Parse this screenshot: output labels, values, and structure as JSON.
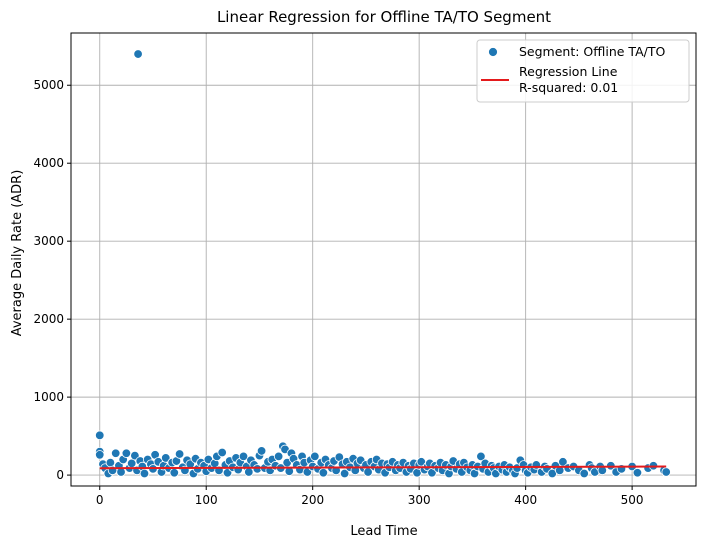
{
  "chart_data": {
    "type": "scatter",
    "title": "Linear Regression for Offline TA/TO Segment",
    "xlabel": "Lead Time",
    "ylabel": "Average Daily Rate (ADR)",
    "xlim": [
      -27,
      560
    ],
    "ylim": [
      -140,
      5670
    ],
    "xticks": [
      0,
      100,
      200,
      300,
      400,
      500
    ],
    "yticks": [
      0,
      1000,
      2000,
      3000,
      4000,
      5000
    ],
    "grid": true,
    "legend_position": "top-right",
    "colors": {
      "points": "#1f77b4",
      "regression": "#e41a1c",
      "grid": "#b0b0b0"
    },
    "series": [
      {
        "name": "Segment: Offline TA/TO",
        "type": "scatter",
        "points": [
          [
            36,
            5400
          ],
          [
            0,
            510
          ],
          [
            0,
            300
          ],
          [
            0,
            260
          ],
          [
            3,
            140
          ],
          [
            5,
            90
          ],
          [
            8,
            20
          ],
          [
            10,
            160
          ],
          [
            12,
            60
          ],
          [
            15,
            280
          ],
          [
            18,
            120
          ],
          [
            20,
            40
          ],
          [
            22,
            200
          ],
          [
            25,
            280
          ],
          [
            28,
            90
          ],
          [
            30,
            150
          ],
          [
            33,
            250
          ],
          [
            35,
            60
          ],
          [
            38,
            180
          ],
          [
            40,
            110
          ],
          [
            42,
            20
          ],
          [
            45,
            200
          ],
          [
            48,
            140
          ],
          [
            50,
            80
          ],
          [
            52,
            260
          ],
          [
            55,
            170
          ],
          [
            58,
            40
          ],
          [
            60,
            120
          ],
          [
            62,
            220
          ],
          [
            65,
            90
          ],
          [
            68,
            160
          ],
          [
            70,
            30
          ],
          [
            72,
            180
          ],
          [
            75,
            270
          ],
          [
            78,
            100
          ],
          [
            80,
            60
          ],
          [
            82,
            190
          ],
          [
            85,
            140
          ],
          [
            88,
            20
          ],
          [
            90,
            210
          ],
          [
            92,
            80
          ],
          [
            95,
            160
          ],
          [
            98,
            120
          ],
          [
            100,
            50
          ],
          [
            102,
            200
          ],
          [
            105,
            90
          ],
          [
            108,
            150
          ],
          [
            110,
            240
          ],
          [
            112,
            60
          ],
          [
            115,
            290
          ],
          [
            118,
            130
          ],
          [
            120,
            30
          ],
          [
            122,
            180
          ],
          [
            125,
            100
          ],
          [
            128,
            220
          ],
          [
            130,
            70
          ],
          [
            132,
            160
          ],
          [
            135,
            240
          ],
          [
            138,
            110
          ],
          [
            140,
            40
          ],
          [
            142,
            190
          ],
          [
            145,
            130
          ],
          [
            148,
            80
          ],
          [
            150,
            250
          ],
          [
            152,
            310
          ],
          [
            155,
            90
          ],
          [
            158,
            170
          ],
          [
            160,
            60
          ],
          [
            162,
            200
          ],
          [
            165,
            120
          ],
          [
            168,
            240
          ],
          [
            170,
            90
          ],
          [
            172,
            370
          ],
          [
            174,
            330
          ],
          [
            176,
            160
          ],
          [
            178,
            50
          ],
          [
            180,
            280
          ],
          [
            182,
            210
          ],
          [
            185,
            130
          ],
          [
            188,
            70
          ],
          [
            190,
            240
          ],
          [
            192,
            160
          ],
          [
            195,
            40
          ],
          [
            198,
            190
          ],
          [
            200,
            110
          ],
          [
            202,
            240
          ],
          [
            205,
            80
          ],
          [
            208,
            160
          ],
          [
            210,
            30
          ],
          [
            212,
            200
          ],
          [
            215,
            130
          ],
          [
            218,
            90
          ],
          [
            220,
            180
          ],
          [
            222,
            60
          ],
          [
            225,
            230
          ],
          [
            228,
            140
          ],
          [
            230,
            20
          ],
          [
            232,
            170
          ],
          [
            235,
            100
          ],
          [
            238,
            210
          ],
          [
            240,
            60
          ],
          [
            242,
            150
          ],
          [
            245,
            190
          ],
          [
            248,
            90
          ],
          [
            250,
            130
          ],
          [
            252,
            40
          ],
          [
            255,
            170
          ],
          [
            258,
            110
          ],
          [
            260,
            200
          ],
          [
            262,
            70
          ],
          [
            265,
            150
          ],
          [
            268,
            30
          ],
          [
            270,
            140
          ],
          [
            272,
            100
          ],
          [
            275,
            170
          ],
          [
            278,
            60
          ],
          [
            280,
            130
          ],
          [
            282,
            90
          ],
          [
            285,
            160
          ],
          [
            288,
            40
          ],
          [
            290,
            120
          ],
          [
            292,
            80
          ],
          [
            295,
            150
          ],
          [
            298,
            30
          ],
          [
            300,
            130
          ],
          [
            302,
            170
          ],
          [
            305,
            70
          ],
          [
            308,
            110
          ],
          [
            310,
            150
          ],
          [
            312,
            30
          ],
          [
            315,
            120
          ],
          [
            318,
            90
          ],
          [
            320,
            160
          ],
          [
            322,
            60
          ],
          [
            325,
            130
          ],
          [
            328,
            20
          ],
          [
            330,
            110
          ],
          [
            332,
            180
          ],
          [
            335,
            80
          ],
          [
            338,
            140
          ],
          [
            340,
            40
          ],
          [
            342,
            160
          ],
          [
            345,
            100
          ],
          [
            348,
            60
          ],
          [
            350,
            130
          ],
          [
            352,
            20
          ],
          [
            355,
            110
          ],
          [
            358,
            240
          ],
          [
            360,
            80
          ],
          [
            362,
            150
          ],
          [
            365,
            40
          ],
          [
            368,
            120
          ],
          [
            370,
            90
          ],
          [
            372,
            20
          ],
          [
            375,
            110
          ],
          [
            378,
            70
          ],
          [
            380,
            130
          ],
          [
            382,
            40
          ],
          [
            385,
            100
          ],
          [
            388,
            60
          ],
          [
            390,
            20
          ],
          [
            392,
            90
          ],
          [
            395,
            190
          ],
          [
            398,
            130
          ],
          [
            400,
            60
          ],
          [
            402,
            30
          ],
          [
            405,
            100
          ],
          [
            408,
            70
          ],
          [
            410,
            130
          ],
          [
            415,
            40
          ],
          [
            418,
            110
          ],
          [
            420,
            80
          ],
          [
            425,
            20
          ],
          [
            428,
            120
          ],
          [
            432,
            60
          ],
          [
            435,
            170
          ],
          [
            440,
            90
          ],
          [
            445,
            110
          ],
          [
            450,
            60
          ],
          [
            455,
            20
          ],
          [
            460,
            130
          ],
          [
            462,
            90
          ],
          [
            465,
            40
          ],
          [
            470,
            110
          ],
          [
            472,
            60
          ],
          [
            480,
            120
          ],
          [
            485,
            40
          ],
          [
            490,
            80
          ],
          [
            500,
            110
          ],
          [
            505,
            30
          ],
          [
            515,
            90
          ],
          [
            520,
            120
          ],
          [
            530,
            60
          ],
          [
            532,
            40
          ]
        ]
      },
      {
        "name": "Regression Line",
        "type": "line",
        "x": [
          0,
          532
        ],
        "y": [
          88,
          110
        ]
      }
    ],
    "legend": {
      "entries": [
        {
          "marker": "point",
          "label": "Segment: Offline TA/TO"
        },
        {
          "marker": "line",
          "label": "Regression Line"
        }
      ],
      "r_squared_label": "R-squared: 0.01"
    }
  }
}
